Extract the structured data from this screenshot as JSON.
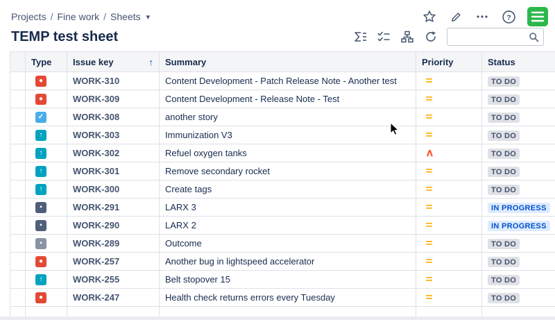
{
  "breadcrumb": {
    "items": [
      "Projects",
      "Fine work",
      "Sheets"
    ],
    "separator": "/"
  },
  "header": {
    "title": "TEMP test sheet"
  },
  "search": {
    "value": "",
    "placeholder": ""
  },
  "top_actions": {
    "icons": [
      "star-icon",
      "pencil-icon",
      "more-icon",
      "help-icon",
      "app-logo"
    ]
  },
  "toolbar_icons": [
    "sum-icon",
    "checklist-icon",
    "hierarchy-icon",
    "refresh-icon"
  ],
  "table": {
    "columns": [
      {
        "id": "sel",
        "label": ""
      },
      {
        "id": "type",
        "label": "Type"
      },
      {
        "id": "key",
        "label": "Issue key",
        "sort": "asc",
        "sort_glyph": "↑"
      },
      {
        "id": "summary",
        "label": "Summary"
      },
      {
        "id": "priority",
        "label": "Priority"
      },
      {
        "id": "status",
        "label": "Status"
      }
    ],
    "rows": [
      {
        "type": "bug",
        "key": "WORK-310",
        "summary": "Content Development - Patch Release Note - Another test",
        "priority": "medium",
        "status": "TO DO"
      },
      {
        "type": "bug",
        "key": "WORK-309",
        "summary": "Content Development - Release Note - Test",
        "priority": "medium",
        "status": "TO DO"
      },
      {
        "type": "task",
        "key": "WORK-308",
        "summary": "another story",
        "priority": "medium",
        "status": "TO DO"
      },
      {
        "type": "story",
        "key": "WORK-303",
        "summary": "Immunization V3",
        "priority": "medium",
        "status": "TO DO"
      },
      {
        "type": "story",
        "key": "WORK-302",
        "summary": "Refuel oxygen tanks",
        "priority": "high",
        "status": "TO DO"
      },
      {
        "type": "story",
        "key": "WORK-301",
        "summary": "Remove secondary rocket",
        "priority": "medium",
        "status": "TO DO"
      },
      {
        "type": "story",
        "key": "WORK-300",
        "summary": "Create tags",
        "priority": "medium",
        "status": "TO DO"
      },
      {
        "type": "subtask",
        "key": "WORK-291",
        "summary": "LARX 3",
        "priority": "medium",
        "status": "IN PROGRESS"
      },
      {
        "type": "subtask",
        "key": "WORK-290",
        "summary": "LARX 2",
        "priority": "medium",
        "status": "IN PROGRESS"
      },
      {
        "type": "minor",
        "key": "WORK-289",
        "summary": "Outcome",
        "priority": "medium",
        "status": "TO DO"
      },
      {
        "type": "bug",
        "key": "WORK-257",
        "summary": "Another bug in lightspeed accelerator",
        "priority": "medium",
        "status": "TO DO"
      },
      {
        "type": "story",
        "key": "WORK-255",
        "summary": "Belt stopover 15",
        "priority": "medium",
        "status": "TO DO"
      },
      {
        "type": "bug",
        "key": "WORK-247",
        "summary": "Health check returns errors every Tuesday",
        "priority": "medium",
        "status": "TO DO"
      }
    ]
  },
  "icons": {
    "types": {
      "bug": {
        "color": "#E34935",
        "glyph": "●"
      },
      "task": {
        "color": "#4BADE8",
        "glyph": "✓"
      },
      "story": {
        "color": "#00A3BF",
        "glyph": "↑"
      },
      "subtask": {
        "color": "#505F79",
        "glyph": "▪"
      },
      "minor": {
        "color": "#8993A4",
        "glyph": "▪"
      }
    },
    "priorities": {
      "medium": {
        "color": "#FFAB00",
        "glyph": "="
      },
      "high": {
        "color": "#FF5630",
        "glyph": "∧"
      }
    },
    "statuses": {
      "TO DO": {
        "bg": "#DFE1E6",
        "fg": "#42526E"
      },
      "IN PROGRESS": {
        "bg": "#DEEBFF",
        "fg": "#0052CC"
      }
    },
    "brand_green": "#2EB84B"
  }
}
